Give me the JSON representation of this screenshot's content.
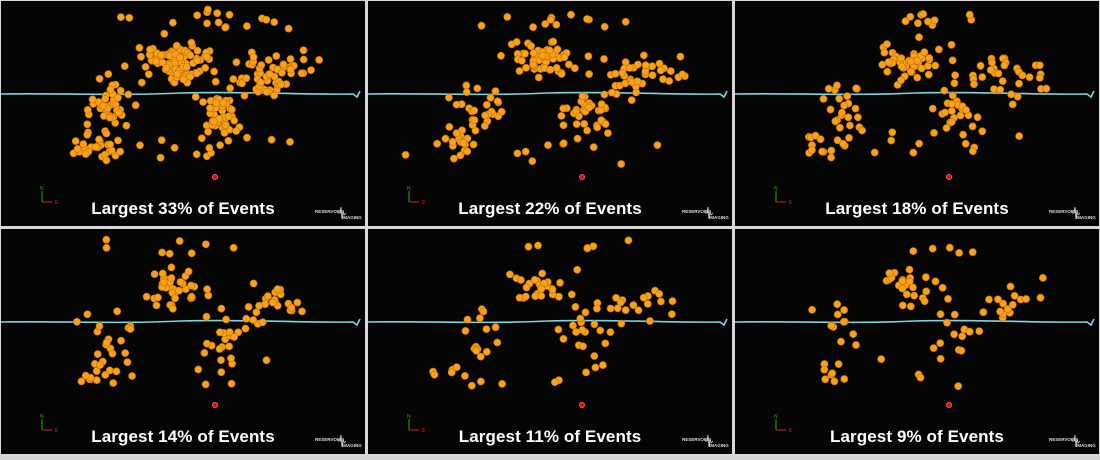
{
  "colors": {
    "background": "#050505",
    "event": "#f8a21b",
    "event_stroke": "#c46d00",
    "horizon": "#7fd3e0",
    "well_marker": "#d81010",
    "axis_north": "#22aa22",
    "axis_east": "#cc2222"
  },
  "logo": {
    "line1": "RESERVOIR",
    "line2": "IMAGING",
    "icon": "seismic-trace-logo"
  },
  "axis_labels": {
    "north": "N",
    "east": "E"
  },
  "chart_data": [
    {
      "type": "scatter",
      "title": "Largest 33% of Events",
      "fraction": 0.33,
      "seed": 11,
      "count": 300
    },
    {
      "type": "scatter",
      "title": "Largest 22% of Events",
      "fraction": 0.22,
      "seed": 23,
      "count": 200
    },
    {
      "type": "scatter",
      "title": "Largest 18% of Events",
      "fraction": 0.18,
      "seed": 37,
      "count": 165
    },
    {
      "type": "scatter",
      "title": "Largest 14% of Events",
      "fraction": 0.14,
      "seed": 41,
      "count": 128
    },
    {
      "type": "scatter",
      "title": "Largest 11% of Events",
      "fraction": 0.11,
      "seed": 53,
      "count": 100
    },
    {
      "type": "scatter",
      "title": "Largest 9% of Events",
      "fraction": 0.09,
      "seed": 67,
      "count": 82
    }
  ]
}
